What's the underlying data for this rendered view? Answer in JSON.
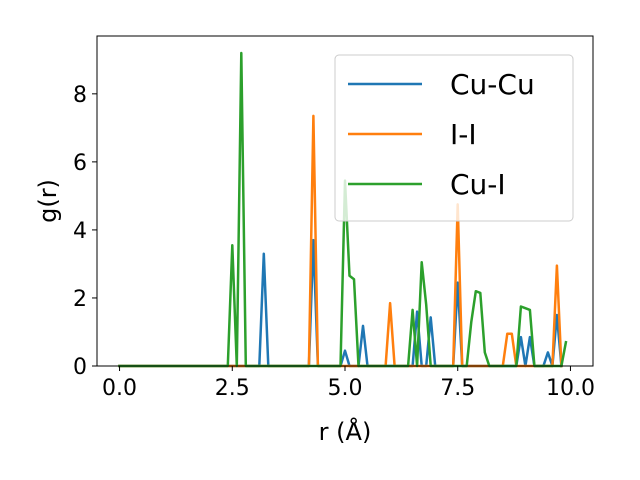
{
  "chart_data": {
    "type": "line",
    "xlabel": "r (Å)",
    "ylabel": "g(r)",
    "xlim": [
      -0.5,
      10.5
    ],
    "ylim": [
      0,
      9.7
    ],
    "xticks": [
      0.0,
      2.5,
      5.0,
      7.5,
      10.0
    ],
    "xtick_labels": [
      "0.0",
      "2.5",
      "5.0",
      "7.5",
      "10.0"
    ],
    "yticks": [
      0,
      2,
      4,
      6,
      8
    ],
    "ytick_labels": [
      "0",
      "2",
      "4",
      "6",
      "8"
    ],
    "grid": false,
    "legend_position": "upper-right",
    "series": [
      {
        "name": "Cu-Cu",
        "color": "#1f77b4",
        "x": [
          0.0,
          3.1,
          3.2,
          3.3,
          4.2,
          4.3,
          4.4,
          4.9,
          5.0,
          5.1,
          5.3,
          5.4,
          5.5,
          6.5,
          6.6,
          6.7,
          6.8,
          6.9,
          7.0,
          7.4,
          7.5,
          7.6,
          8.8,
          8.9,
          9.0,
          9.1,
          9.2,
          9.3,
          9.4,
          9.5,
          9.6,
          9.7,
          9.8
        ],
        "y": [
          0.0,
          0.0,
          3.3,
          0.0,
          0.0,
          3.7,
          0.0,
          0.0,
          0.45,
          0.0,
          0.0,
          1.18,
          0.0,
          0.0,
          1.6,
          0.0,
          0.0,
          1.43,
          0.0,
          0.0,
          2.45,
          0.0,
          0.0,
          0.85,
          0.0,
          0.85,
          0.0,
          0.0,
          0.0,
          0.4,
          0.0,
          1.5,
          0.0
        ]
      },
      {
        "name": "I-I",
        "color": "#ff7f0e",
        "x": [
          0.0,
          4.2,
          4.3,
          4.4,
          5.9,
          6.0,
          6.1,
          7.4,
          7.5,
          7.6,
          8.5,
          8.6,
          8.7,
          8.8,
          9.6,
          9.7,
          9.8
        ],
        "y": [
          0.0,
          0.0,
          7.35,
          0.0,
          0.0,
          1.85,
          0.0,
          0.0,
          4.75,
          0.0,
          0.0,
          0.95,
          0.95,
          0.0,
          0.0,
          2.95,
          0.0
        ]
      },
      {
        "name": "Cu-I",
        "color": "#2ca02c",
        "x": [
          0.0,
          2.4,
          2.5,
          2.6,
          2.7,
          2.8,
          4.9,
          5.0,
          5.1,
          5.2,
          5.3,
          6.4,
          6.5,
          6.6,
          6.7,
          6.8,
          6.9,
          7.7,
          7.8,
          7.9,
          8.0,
          8.1,
          8.2,
          8.8,
          8.9,
          9.0,
          9.1,
          9.2,
          9.3,
          9.8,
          9.9
        ],
        "y": [
          0.0,
          0.0,
          3.55,
          0.0,
          9.2,
          0.0,
          0.0,
          5.45,
          2.65,
          2.55,
          0.0,
          0.0,
          1.65,
          0.0,
          3.05,
          1.8,
          0.0,
          0.0,
          1.3,
          2.2,
          2.15,
          0.4,
          0.0,
          0.0,
          1.75,
          1.7,
          1.65,
          0.0,
          0.0,
          0.0,
          0.7
        ]
      }
    ]
  }
}
